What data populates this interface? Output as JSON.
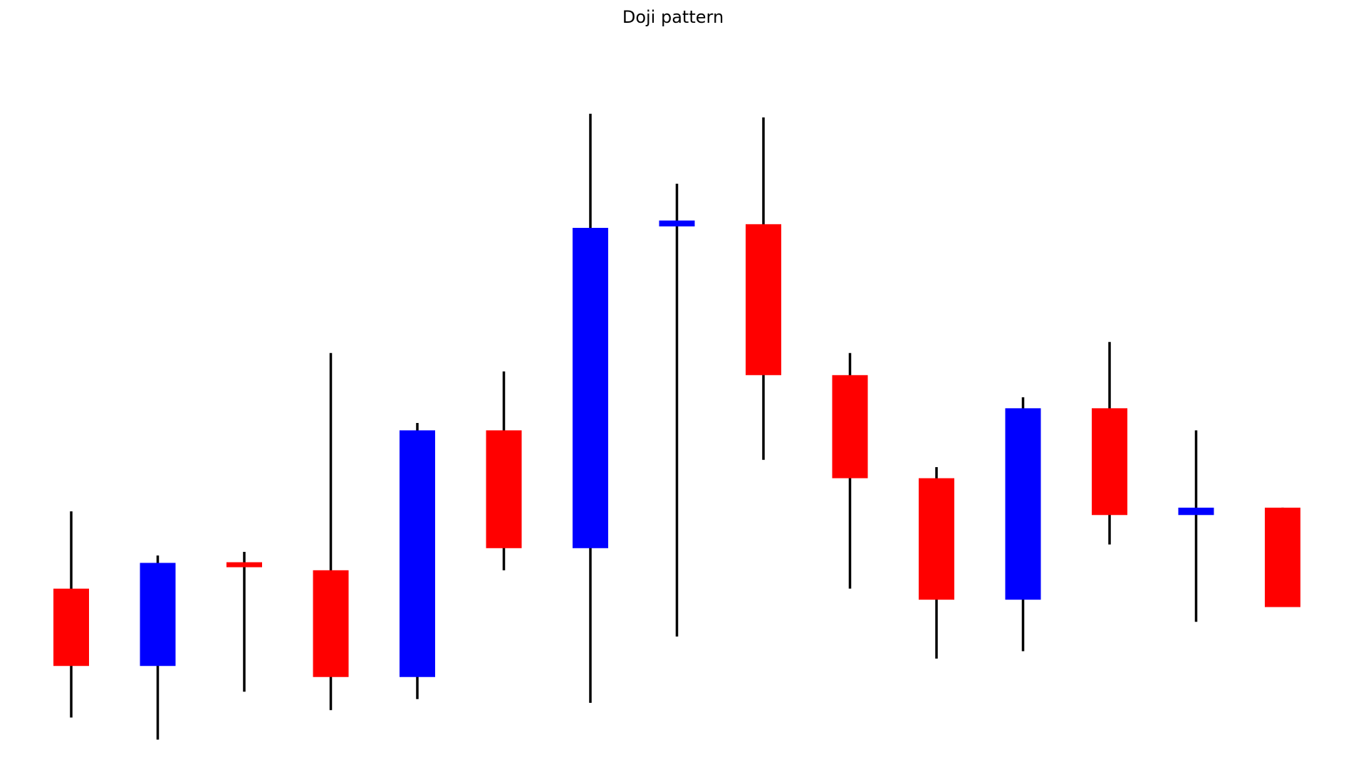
{
  "chart_data": {
    "type": "candlestick",
    "title": "Doji pattern",
    "xlabel": "",
    "ylabel": "",
    "axes_visible": false,
    "grid": false,
    "ylim": [
      0,
      100
    ],
    "colors": {
      "bullish": "#0000ff",
      "bearish": "#ff0000",
      "wick": "#000000"
    },
    "candles": [
      {
        "open": 24.5,
        "close": 14.0,
        "high": 35.0,
        "low": 7.0
      },
      {
        "open": 14.0,
        "close": 28.0,
        "high": 29.0,
        "low": 4.0
      },
      {
        "open": 28.0,
        "close": 27.5,
        "high": 29.5,
        "low": 10.5
      },
      {
        "open": 27.0,
        "close": 12.5,
        "high": 56.5,
        "low": 8.0
      },
      {
        "open": 12.5,
        "close": 46.0,
        "high": 47.0,
        "low": 9.5
      },
      {
        "open": 46.0,
        "close": 30.0,
        "high": 54.0,
        "low": 27.0
      },
      {
        "open": 30.0,
        "close": 73.5,
        "high": 89.0,
        "low": 9.0
      },
      {
        "open": 73.7,
        "close": 74.5,
        "high": 79.5,
        "low": 18.0
      },
      {
        "open": 74.0,
        "close": 53.5,
        "high": 88.5,
        "low": 42.0
      },
      {
        "open": 53.5,
        "close": 39.5,
        "high": 56.5,
        "low": 24.5
      },
      {
        "open": 39.5,
        "close": 23.0,
        "high": 41.0,
        "low": 15.0
      },
      {
        "open": 23.0,
        "close": 49.0,
        "high": 50.5,
        "low": 16.0
      },
      {
        "open": 49.0,
        "close": 34.5,
        "high": 58.0,
        "low": 30.5
      },
      {
        "open": 34.5,
        "close": 35.5,
        "high": 46.0,
        "low": 20.0
      },
      {
        "open": 35.5,
        "close": 22.0,
        "high": 35.5,
        "low": 22.0
      }
    ]
  }
}
